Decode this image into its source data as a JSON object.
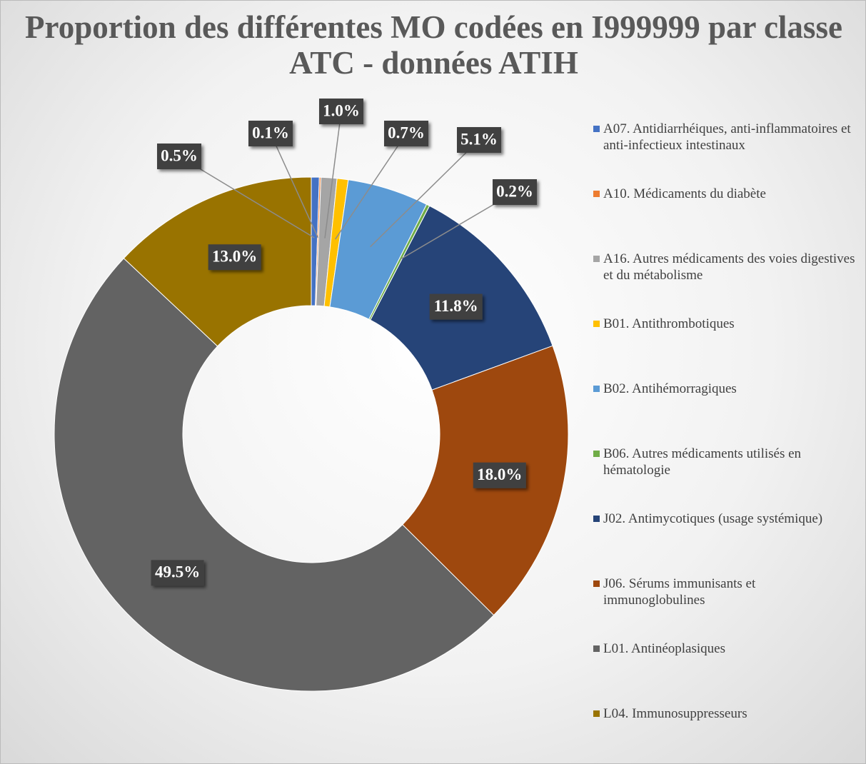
{
  "chart_data": {
    "type": "donut",
    "title": "Proportion des différentes MO codées en I999999 par classe ATC - données ATIH",
    "categories": [
      "A07. Antidiarrhéiques, anti-inflammatoires et anti-infectieux intestinaux",
      "A10. Médicaments du diabète",
      "A16. Autres médicaments des voies digestives et du métabolisme",
      "B01. Antithrombotiques",
      "B02. Antihémorragiques",
      "B06. Autres médicaments utilisés en hématologie",
      "J02. Antimycotiques (usage systémique)",
      "J06. Sérums immunisants et immunoglobulines",
      "L01. Antinéoplasiques",
      "L04. Immunosuppresseurs"
    ],
    "values": [
      0.5,
      0.1,
      1.0,
      0.7,
      5.1,
      0.2,
      11.8,
      18.0,
      49.5,
      13.0
    ],
    "value_labels": [
      "0.5%",
      "0.1%",
      "1.0%",
      "0.7%",
      "5.1%",
      "0.2%",
      "11.8%",
      "18.0%",
      "49.5%",
      "13.0%"
    ],
    "colors": [
      "#4472c4",
      "#ed7d31",
      "#a5a5a5",
      "#ffc000",
      "#5b9bd5",
      "#70ad47",
      "#264478",
      "#9e480e",
      "#636363",
      "#997300"
    ],
    "legend": "right"
  }
}
